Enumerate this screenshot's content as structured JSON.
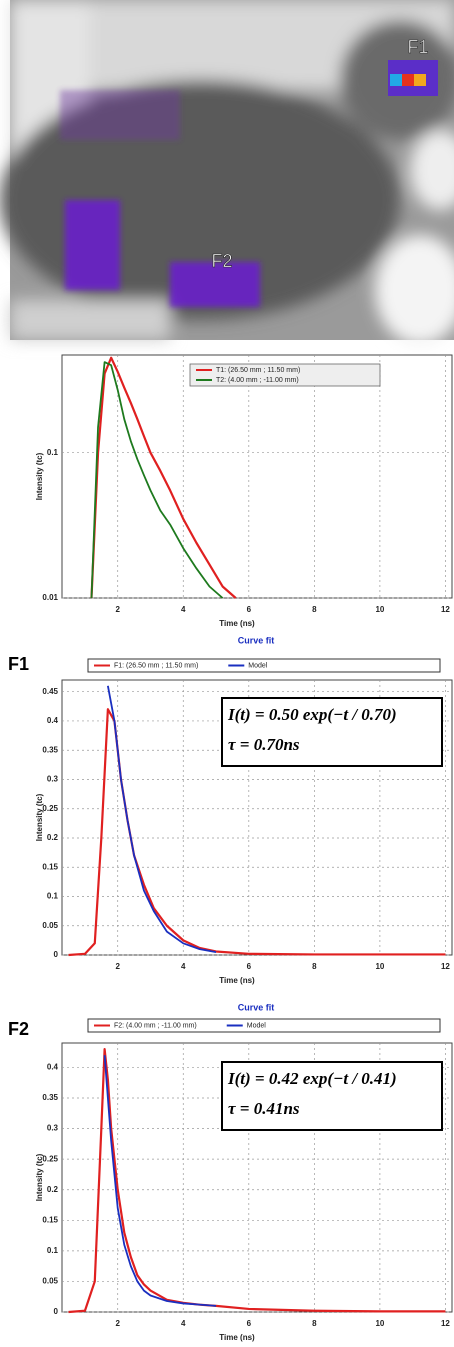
{
  "image": {
    "labels": [
      "F1",
      "F2"
    ]
  },
  "chart_data": [
    {
      "type": "line",
      "log_y": true,
      "grid": true,
      "xlabel": "Time (ns)",
      "ylabel": "Intensity (tc)",
      "x": [
        1.2,
        1.4,
        1.6,
        1.8,
        2.0,
        2.2,
        2.4,
        2.6,
        2.8,
        3.0,
        3.3,
        3.6,
        4.0,
        4.4,
        4.8,
        5.2,
        5.6
      ],
      "series": [
        {
          "name": "T1: (26.50 mm ; 11.50 mm)",
          "color": "#e02020",
          "values": [
            0.01,
            0.1,
            0.35,
            0.45,
            0.36,
            0.28,
            0.22,
            0.17,
            0.13,
            0.1,
            0.075,
            0.055,
            0.035,
            0.024,
            0.017,
            0.012,
            0.01
          ]
        },
        {
          "name": "T2: (4.00 mm ; -11.00 mm)",
          "color": "#1e7a1e",
          "values": [
            0.01,
            0.15,
            0.42,
            0.4,
            0.27,
            0.17,
            0.12,
            0.09,
            0.07,
            0.055,
            0.04,
            0.032,
            0.022,
            0.016,
            0.012,
            0.01,
            null
          ]
        }
      ],
      "xlim": [
        0.3,
        12.2
      ],
      "xticks": [
        2,
        4,
        6,
        8,
        10,
        12
      ],
      "ylim": [
        0.01,
        0.47
      ],
      "yticks": [
        0.01,
        0.1
      ]
    },
    {
      "type": "line",
      "grid": true,
      "title": "Curve fit",
      "panel_label": "F1",
      "xlabel": "Time (ns)",
      "ylabel": "Intensity (tc)",
      "annotations": [
        "I(t) = 0.50 exp(−t / 0.70)",
        "τ = 0.70ns"
      ],
      "x": [
        0.5,
        1.0,
        1.3,
        1.5,
        1.7,
        1.9,
        2.1,
        2.3,
        2.5,
        2.8,
        3.1,
        3.5,
        4.0,
        4.5,
        5.0,
        6,
        8,
        10,
        12
      ],
      "series": [
        {
          "name": "F1: (26.50 mm ; 11.50 mm)",
          "color": "#e02020",
          "values": [
            0,
            0.002,
            0.02,
            0.2,
            0.42,
            0.4,
            0.3,
            0.23,
            0.17,
            0.12,
            0.08,
            0.05,
            0.025,
            0.012,
            0.006,
            0.002,
            0.001,
            0.001,
            0.001
          ]
        },
        {
          "name": "Model",
          "color": "#1a2fc0",
          "values": [
            null,
            null,
            null,
            null,
            0.46,
            0.4,
            0.3,
            0.23,
            0.17,
            0.11,
            0.075,
            0.04,
            0.02,
            0.01,
            0.005,
            null,
            null,
            null,
            null
          ]
        }
      ],
      "xlim": [
        0.3,
        12.2
      ],
      "xticks": [
        2,
        4,
        6,
        8,
        10,
        12
      ],
      "ylim": [
        0,
        0.47
      ],
      "yticks": [
        0,
        0.05,
        0.1,
        0.15,
        0.2,
        0.25,
        0.3,
        0.35,
        0.4,
        0.45
      ]
    },
    {
      "type": "line",
      "grid": true,
      "title": "Curve fit",
      "panel_label": "F2",
      "xlabel": "Time (ns)",
      "ylabel": "Intensity (tc)",
      "annotations": [
        "I(t) = 0.42 exp(−t / 0.41)",
        "τ = 0.41ns"
      ],
      "x": [
        0.5,
        1.0,
        1.3,
        1.5,
        1.6,
        1.7,
        1.8,
        2.0,
        2.2,
        2.4,
        2.6,
        2.8,
        3.0,
        3.5,
        4.0,
        4.5,
        5.0,
        6,
        8,
        10,
        12
      ],
      "series": [
        {
          "name": "F2: (4.00 mm ; -11.00 mm)",
          "color": "#e02020",
          "values": [
            0,
            0.002,
            0.05,
            0.3,
            0.43,
            0.38,
            0.3,
            0.2,
            0.13,
            0.09,
            0.06,
            0.045,
            0.035,
            0.02,
            0.015,
            0.012,
            0.01,
            0.005,
            0.002,
            0.001,
            0.001
          ]
        },
        {
          "name": "Model",
          "color": "#1a2fc0",
          "values": [
            null,
            null,
            null,
            null,
            0.42,
            0.35,
            0.28,
            0.17,
            0.11,
            0.075,
            0.05,
            0.035,
            0.027,
            0.018,
            0.014,
            0.012,
            0.01,
            null,
            null,
            null,
            null
          ]
        }
      ],
      "xlim": [
        0.3,
        12.2
      ],
      "xticks": [
        2,
        4,
        6,
        8,
        10,
        12
      ],
      "ylim": [
        0,
        0.44
      ],
      "yticks": [
        0,
        0.05,
        0.1,
        0.15,
        0.2,
        0.25,
        0.3,
        0.35,
        0.4
      ]
    }
  ]
}
